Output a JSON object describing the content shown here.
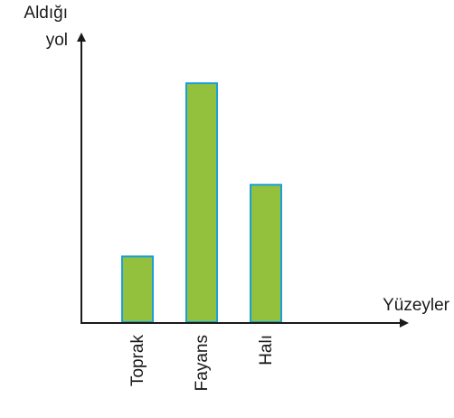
{
  "chart_data": {
    "type": "bar",
    "ylabel": [
      "Aldığı",
      "yol"
    ],
    "xlabel": "Yüzeyler",
    "categories": [
      "Toprak",
      "Fayans",
      "Halı"
    ],
    "values": [
      22,
      80,
      46
    ],
    "ylim": [
      0,
      100
    ],
    "grid": false,
    "bar_fill": "#93c13e",
    "bar_stroke": "#1aa0d8",
    "axis_color": "#1a1a1a"
  }
}
